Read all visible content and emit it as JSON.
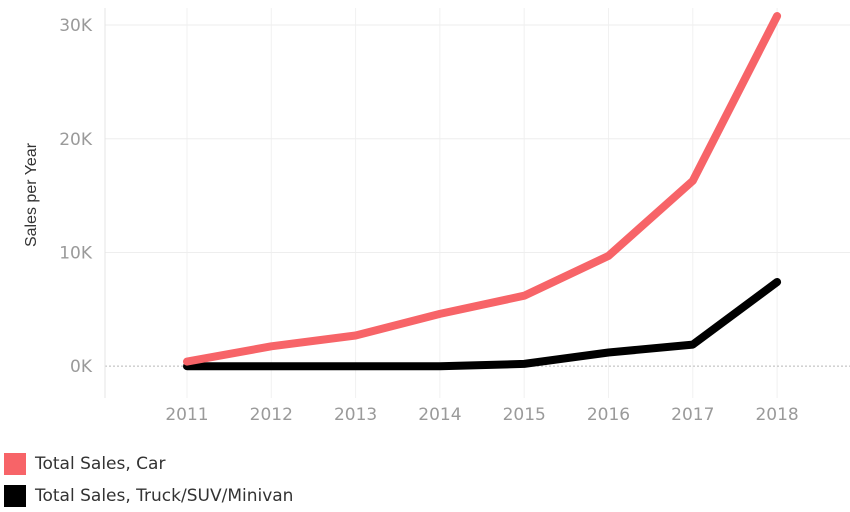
{
  "chart_data": {
    "type": "line",
    "title": "",
    "xlabel": "",
    "ylabel": "Sales per Year",
    "categories": [
      "2011",
      "2012",
      "2013",
      "2014",
      "2015",
      "2016",
      "2017",
      "2018"
    ],
    "y_ticks": [
      {
        "value": 0,
        "label": "0K"
      },
      {
        "value": 10000,
        "label": "10K"
      },
      {
        "value": 20000,
        "label": "20K"
      },
      {
        "value": 30000,
        "label": "30K"
      }
    ],
    "ylim": [
      -2800,
      31500
    ],
    "grid": true,
    "legend_position": "bottom-left",
    "series": [
      {
        "name": "Total Sales, Car",
        "color": "#f76468",
        "values": [
          400,
          1750,
          2700,
          4600,
          6200,
          9700,
          16300,
          30800
        ]
      },
      {
        "name": "Total Sales, Truck/SUV/Minivan",
        "color": "#000000",
        "values": [
          0,
          0,
          0,
          0,
          200,
          1200,
          1900,
          7400
        ]
      }
    ]
  }
}
